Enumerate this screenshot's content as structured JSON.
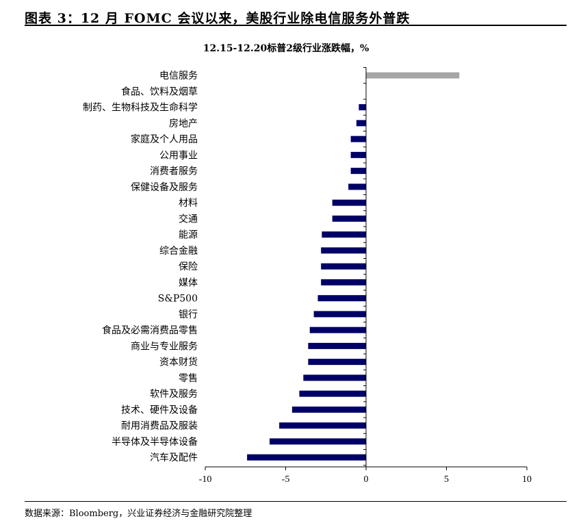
{
  "figure": {
    "title": "图表 3：12 月 FOMC 会议以来，美股行业除电信服务外普跌",
    "source": "数据来源：Bloomberg，兴业证券经济与金融研究院整理"
  },
  "chart_data": {
    "type": "bar",
    "orientation": "horizontal",
    "title": "12.15-12.20标普2级行业涨跌幅，%",
    "xlabel": "",
    "ylabel": "",
    "xlim": [
      -10,
      10
    ],
    "xticks": [
      -10,
      -5,
      0,
      5,
      10
    ],
    "grid": false,
    "legend": "none",
    "colors": {
      "positive": "#a6a6a6",
      "negative": "#000066"
    },
    "categories": [
      "电信服务",
      "食品、饮料及烟草",
      "制药、生物科技及生命科学",
      "房地产",
      "家庭及个人用品",
      "公用事业",
      "消费者服务",
      "保健设备及服务",
      "材料",
      "交通",
      "能源",
      "综合金融",
      "保险",
      "媒体",
      "S&P500",
      "银行",
      "食品及必需消费品零售",
      "商业与专业服务",
      "资本财货",
      "零售",
      "软件及服务",
      "技术、硬件及设备",
      "耐用消费品及服装",
      "半导体及半导体设备",
      "汽车及配件"
    ],
    "values": [
      5.8,
      0.0,
      -0.45,
      -0.6,
      -0.95,
      -0.95,
      -0.95,
      -1.1,
      -2.1,
      -2.1,
      -2.75,
      -2.8,
      -2.8,
      -2.8,
      -3.0,
      -3.25,
      -3.5,
      -3.6,
      -3.6,
      -3.9,
      -4.15,
      -4.6,
      -5.4,
      -6.0,
      -7.4
    ]
  }
}
